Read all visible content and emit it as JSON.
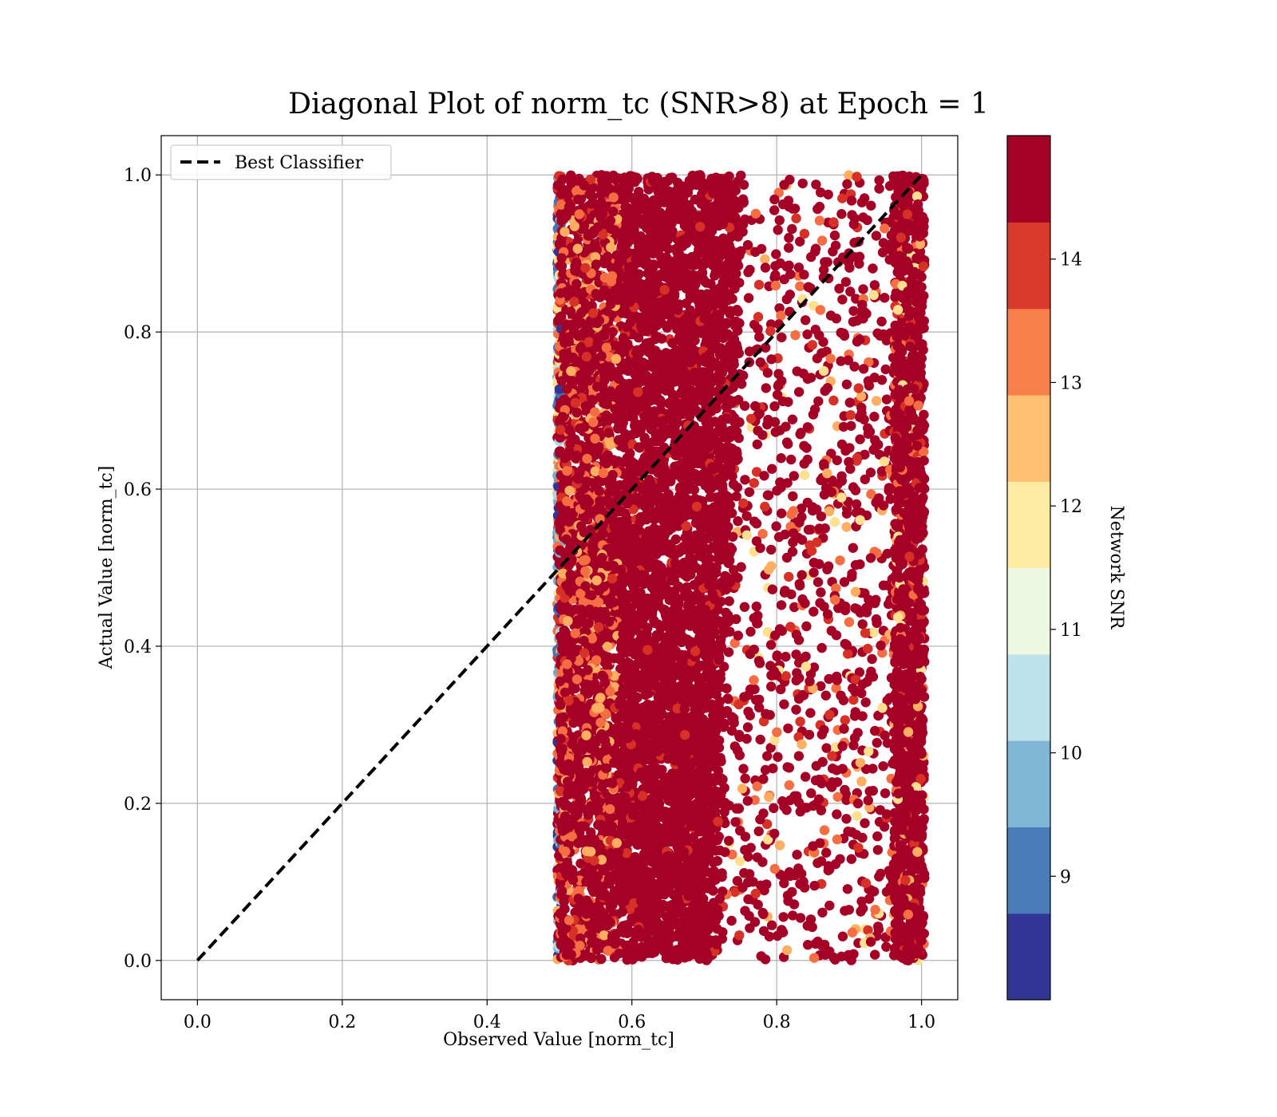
{
  "chart_data": {
    "type": "scatter",
    "title": "Diagonal Plot of norm_tc (SNR>8) at Epoch = 1",
    "xlabel": "Observed Value [norm_tc]",
    "ylabel": "Actual Value [norm_tc]",
    "xlim": [
      -0.05,
      1.05
    ],
    "ylim": [
      -0.05,
      1.05
    ],
    "x_ticks": [
      "0.0",
      "0.2",
      "0.4",
      "0.6",
      "0.8",
      "1.0"
    ],
    "y_ticks": [
      "0.0",
      "0.2",
      "0.4",
      "0.6",
      "0.8",
      "1.0"
    ],
    "grid": true,
    "legend": {
      "entry": "Best Classifier",
      "location": "upper-left"
    },
    "reference_line": {
      "name": "Best Classifier",
      "x": [
        0,
        1
      ],
      "y": [
        0,
        1
      ],
      "style": "dashed",
      "color": "#000000"
    },
    "scatter_regions": [
      {
        "description_x_range": [
          0.5,
          0.72
        ],
        "y_range": [
          0,
          1
        ],
        "density": "saturated"
      },
      {
        "x_range": [
          0.72,
          0.97
        ],
        "y_range": [
          0,
          1
        ],
        "density": "sparse"
      },
      {
        "x_range": [
          0.97,
          1.0
        ],
        "y_range": [
          0,
          1
        ],
        "density": "dense"
      }
    ],
    "colorbar": {
      "label": "Network SNR",
      "range": [
        8,
        15
      ],
      "tick_labels": [
        "9",
        "10",
        "11",
        "12",
        "13",
        "14"
      ],
      "tick_values": [
        9,
        10,
        11,
        12,
        13,
        14
      ],
      "colors": [
        "#313695",
        "#4575b4",
        "#74add1",
        "#abd9e9",
        "#e0f3f8",
        "#ffffbf",
        "#fee090",
        "#fdae61",
        "#f46d43",
        "#d73027",
        "#a50026"
      ],
      "bands": [
        "#313695",
        "#4a7cb9",
        "#80b6d6",
        "#bde2ec",
        "#eef7e1",
        "#feeba2",
        "#fdbf71",
        "#f67f4b",
        "#d93a2b",
        "#a50026"
      ],
      "band_edges": [
        8.0,
        8.7,
        9.4,
        10.1,
        10.8,
        11.5,
        12.2,
        12.9,
        13.6,
        14.3,
        15.0
      ]
    }
  }
}
